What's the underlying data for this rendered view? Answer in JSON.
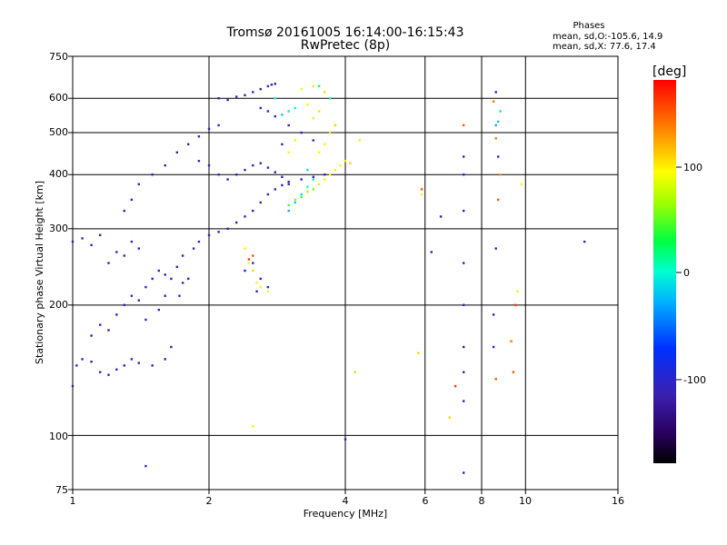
{
  "chart_data": {
    "type": "scatter",
    "title": "Tromsø 20161005 16:14:00-16:15:43",
    "subtitle": "RwPretec (8p)",
    "xlabel": "Frequency [MHz]",
    "ylabel": "Stationary phase Virtual Height [km]",
    "x_scale": "log",
    "y_scale": "log",
    "xlim": [
      1,
      16
    ],
    "ylim": [
      75,
      750
    ],
    "x_ticks": [
      "1",
      "2",
      "4",
      "6",
      "8",
      "10",
      "16"
    ],
    "y_ticks": [
      "75",
      "100",
      "200",
      "300",
      "400",
      "500",
      "600",
      "750"
    ],
    "grid": true,
    "legend": {
      "title": "Phases",
      "line_o": "mean, sd,O:-105.6, 14.9",
      "line_x": "mean, sd,X:  77.6, 17.4"
    },
    "colorbar": {
      "label": "[deg]",
      "ticks": [
        "100",
        "0",
        "-100"
      ],
      "range": [
        -180,
        180
      ]
    },
    "series": [
      {
        "points": [
          [
            1.0,
            130,
            -105
          ],
          [
            1.02,
            145,
            -100
          ],
          [
            1.05,
            150,
            -110
          ],
          [
            1.1,
            148,
            -112
          ],
          [
            1.15,
            140,
            -105
          ],
          [
            1.2,
            138,
            -108
          ],
          [
            1.25,
            142,
            -100
          ],
          [
            1.3,
            145,
            -105
          ],
          [
            1.35,
            150,
            -110
          ],
          [
            1.4,
            147,
            -103
          ],
          [
            1.5,
            145,
            -108
          ],
          [
            1.6,
            150,
            -100
          ],
          [
            1.65,
            160,
            -110
          ],
          [
            1.1,
            170,
            -112
          ],
          [
            1.15,
            180,
            -105
          ],
          [
            1.2,
            175,
            -108
          ],
          [
            1.25,
            190,
            -100
          ],
          [
            1.3,
            200,
            -105
          ],
          [
            1.35,
            210,
            -110
          ],
          [
            1.4,
            205,
            -103
          ],
          [
            1.45,
            220,
            -108
          ],
          [
            1.5,
            230,
            -100
          ],
          [
            1.55,
            240,
            -110
          ],
          [
            1.6,
            235,
            -112
          ],
          [
            1.3,
            260,
            -105
          ],
          [
            1.35,
            280,
            -108
          ],
          [
            1.4,
            270,
            -100
          ],
          [
            1.2,
            250,
            -105
          ],
          [
            1.25,
            265,
            -110
          ],
          [
            1.45,
            185,
            -103
          ],
          [
            1.55,
            195,
            -108
          ],
          [
            1.6,
            210,
            -100
          ],
          [
            1.65,
            230,
            -110
          ],
          [
            1.7,
            245,
            -112
          ],
          [
            1.72,
            210,
            -105
          ],
          [
            1.75,
            225,
            -108
          ],
          [
            1.8,
            230,
            -100
          ],
          [
            1.75,
            260,
            -105
          ],
          [
            1.85,
            270,
            -110
          ],
          [
            1.9,
            280,
            -103
          ],
          [
            2.0,
            290,
            -108
          ],
          [
            2.1,
            295,
            -100
          ],
          [
            2.2,
            300,
            -110
          ],
          [
            2.3,
            310,
            -112
          ],
          [
            2.4,
            320,
            -105
          ],
          [
            2.5,
            330,
            -108
          ],
          [
            2.6,
            345,
            -100
          ],
          [
            2.7,
            360,
            -105
          ],
          [
            2.8,
            370,
            -110
          ],
          [
            2.9,
            378,
            -103
          ],
          [
            3.0,
            385,
            -108
          ],
          [
            3.2,
            390,
            -100
          ],
          [
            3.4,
            395,
            -110
          ],
          [
            3.6,
            400,
            -112
          ],
          [
            1.0,
            280,
            -105
          ],
          [
            1.05,
            285,
            -108
          ],
          [
            1.1,
            275,
            -100
          ],
          [
            1.15,
            290,
            -105
          ],
          [
            1.3,
            330,
            -110
          ],
          [
            1.35,
            350,
            -103
          ],
          [
            1.4,
            380,
            -108
          ],
          [
            1.5,
            400,
            -100
          ],
          [
            1.6,
            420,
            -110
          ],
          [
            1.7,
            450,
            -112
          ],
          [
            1.8,
            470,
            -105
          ],
          [
            1.9,
            490,
            -108
          ],
          [
            2.0,
            510,
            -100
          ],
          [
            2.1,
            520,
            -105
          ],
          [
            1.9,
            430,
            -110
          ],
          [
            2.0,
            420,
            -103
          ],
          [
            2.1,
            400,
            -108
          ],
          [
            2.2,
            390,
            -100
          ],
          [
            2.3,
            400,
            -110
          ],
          [
            2.4,
            410,
            -112
          ],
          [
            2.5,
            420,
            -105
          ],
          [
            2.6,
            425,
            -108
          ],
          [
            2.7,
            415,
            -100
          ],
          [
            2.8,
            405,
            -105
          ],
          [
            2.9,
            395,
            -110
          ],
          [
            3.0,
            380,
            -103
          ],
          [
            2.1,
            600,
            -108
          ],
          [
            2.2,
            595,
            -100
          ],
          [
            2.3,
            605,
            -110
          ],
          [
            2.4,
            610,
            -112
          ],
          [
            2.5,
            620,
            -105
          ],
          [
            2.6,
            630,
            -108
          ],
          [
            2.7,
            640,
            -100
          ],
          [
            2.75,
            645,
            -105
          ],
          [
            2.8,
            648,
            -110
          ],
          [
            2.6,
            570,
            -103
          ],
          [
            2.7,
            560,
            -108
          ],
          [
            2.8,
            545,
            -100
          ],
          [
            3.0,
            520,
            -110
          ],
          [
            3.2,
            500,
            -112
          ],
          [
            3.4,
            480,
            -105
          ],
          [
            2.9,
            470,
            -108
          ],
          [
            2.4,
            240,
            -100
          ],
          [
            2.5,
            250,
            -105
          ],
          [
            2.6,
            230,
            -110
          ],
          [
            2.55,
            215,
            -103
          ],
          [
            2.7,
            220,
            -108
          ],
          [
            4.0,
            98,
            -100
          ],
          [
            1.45,
            85,
            -110
          ],
          [
            7.3,
            440,
            -112
          ],
          [
            7.3,
            400,
            -105
          ],
          [
            7.3,
            330,
            -108
          ],
          [
            7.3,
            250,
            -100
          ],
          [
            7.3,
            200,
            -105
          ],
          [
            7.3,
            160,
            -110
          ],
          [
            7.3,
            140,
            -103
          ],
          [
            7.3,
            120,
            -108
          ],
          [
            7.3,
            82,
            -100
          ],
          [
            8.5,
            190,
            -110
          ],
          [
            8.6,
            270,
            -112
          ],
          [
            8.7,
            440,
            -105
          ],
          [
            8.6,
            620,
            -108
          ],
          [
            8.5,
            160,
            -100
          ],
          [
            13.5,
            280,
            -105
          ],
          [
            6.2,
            265,
            -110
          ],
          [
            6.5,
            320,
            -103
          ]
        ]
      },
      {
        "points": [
          [
            3.0,
            340,
            40
          ],
          [
            3.1,
            350,
            60
          ],
          [
            3.2,
            355,
            45
          ],
          [
            3.3,
            365,
            70
          ],
          [
            3.4,
            370,
            55
          ],
          [
            3.5,
            380,
            80
          ],
          [
            3.6,
            390,
            90
          ],
          [
            3.7,
            400,
            100
          ],
          [
            3.8,
            410,
            85
          ],
          [
            3.9,
            420,
            95
          ],
          [
            4.0,
            430,
            105
          ],
          [
            4.1,
            425,
            110
          ],
          [
            3.5,
            450,
            95
          ],
          [
            3.6,
            470,
            100
          ],
          [
            3.7,
            500,
            105
          ],
          [
            3.8,
            520,
            110
          ],
          [
            3.4,
            540,
            100
          ],
          [
            3.5,
            560,
            105
          ],
          [
            3.3,
            580,
            95
          ],
          [
            3.2,
            630,
            90
          ],
          [
            3.4,
            640,
            100
          ],
          [
            3.6,
            620,
            105
          ],
          [
            3.0,
            450,
            95
          ],
          [
            3.1,
            480,
            100
          ],
          [
            2.4,
            270,
            100
          ],
          [
            2.45,
            250,
            95
          ],
          [
            2.5,
            240,
            105
          ],
          [
            2.55,
            225,
            100
          ],
          [
            2.6,
            220,
            95
          ],
          [
            2.7,
            215,
            90
          ],
          [
            2.5,
            105,
            100
          ],
          [
            5.8,
            155,
            110
          ],
          [
            5.9,
            360,
            100
          ],
          [
            6.8,
            110,
            110
          ],
          [
            9.6,
            215,
            90
          ],
          [
            9.8,
            380,
            100
          ],
          [
            4.2,
            140,
            110
          ],
          [
            4.3,
            480,
            100
          ]
        ]
      },
      {
        "points": [
          [
            3.0,
            330,
            -30
          ],
          [
            3.1,
            345,
            -20
          ],
          [
            3.2,
            360,
            -10
          ],
          [
            3.3,
            375,
            0
          ],
          [
            3.4,
            390,
            10
          ],
          [
            2.9,
            550,
            -20
          ],
          [
            3.0,
            560,
            -10
          ],
          [
            3.1,
            570,
            0
          ],
          [
            8.7,
            530,
            -20
          ],
          [
            8.8,
            560,
            -10
          ],
          [
            8.6,
            520,
            -30
          ],
          [
            3.7,
            600,
            10
          ],
          [
            3.5,
            640,
            20
          ],
          [
            3.3,
            410,
            -10
          ],
          [
            2.8,
            600,
            0
          ]
        ]
      },
      {
        "points": [
          [
            7.3,
            520,
            150
          ],
          [
            8.6,
            485,
            140
          ],
          [
            8.7,
            350,
            150
          ],
          [
            8.8,
            400,
            130
          ],
          [
            7.0,
            130,
            160
          ],
          [
            9.5,
            200,
            160
          ],
          [
            8.6,
            135,
            150
          ],
          [
            9.4,
            140,
            150
          ],
          [
            9.3,
            165,
            140
          ],
          [
            5.9,
            370,
            150
          ],
          [
            2.5,
            260,
            150
          ],
          [
            2.45,
            255,
            160
          ],
          [
            8.5,
            590,
            140
          ]
        ]
      }
    ]
  }
}
